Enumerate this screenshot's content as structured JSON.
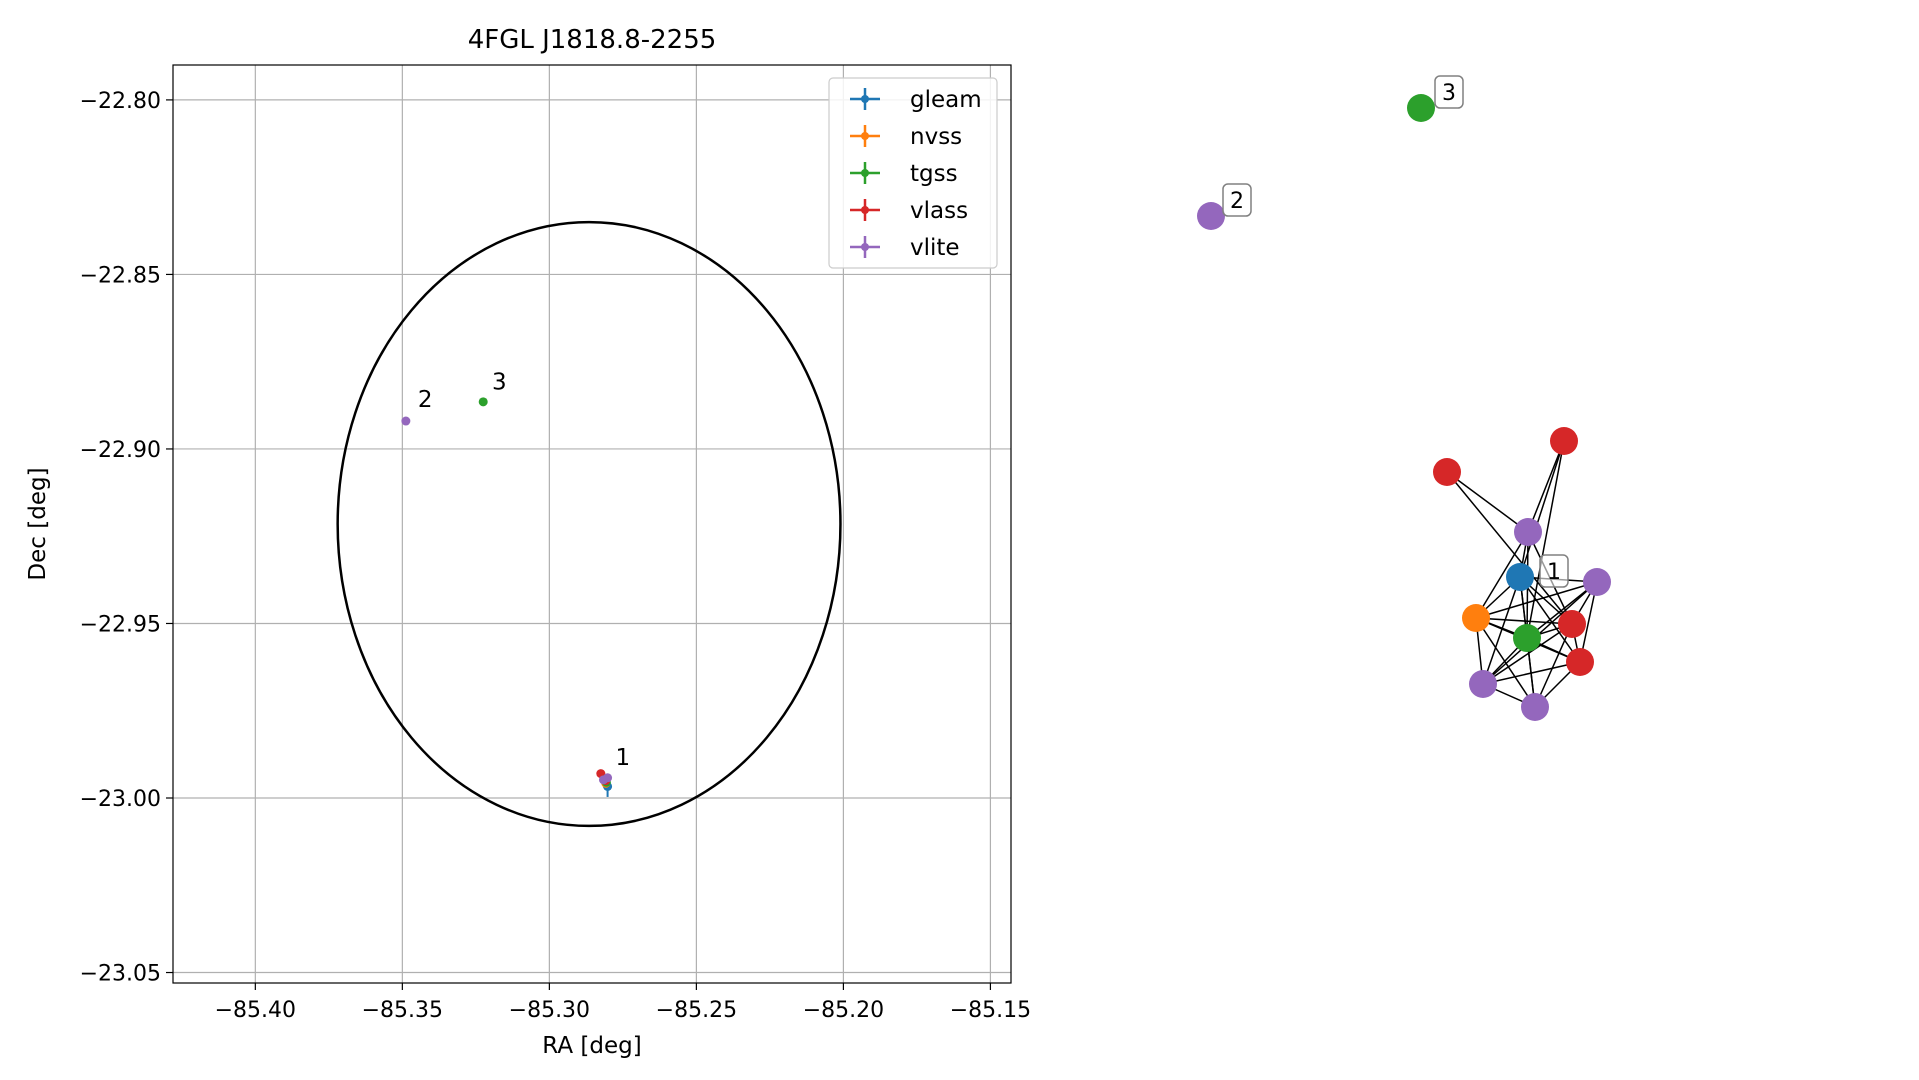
{
  "colors": {
    "gleam": "#1f77b4",
    "nvss": "#ff7f0e",
    "tgss": "#2ca02c",
    "vlass": "#d62728",
    "vlite": "#9467bd",
    "grid": "#b0b0b0",
    "axis": "#000000"
  },
  "chart_data": [
    {
      "type": "scatter",
      "title": "4FGL J1818.8-2255",
      "xlabel": "RA [deg]",
      "ylabel": "Dec [deg]",
      "xlim": [
        -85.428,
        -85.143
      ],
      "ylim": [
        -23.053,
        -22.79
      ],
      "x_ticks": [
        -85.4,
        -85.35,
        -85.3,
        -85.25,
        -85.2,
        -85.15
      ],
      "x_tick_labels": [
        "−85.40",
        "−85.35",
        "−85.30",
        "−85.25",
        "−85.20",
        "−85.15"
      ],
      "y_ticks": [
        -22.8,
        -22.85,
        -22.9,
        -22.95,
        -23.0,
        -23.05
      ],
      "y_tick_labels": [
        "−22.80",
        "−22.85",
        "−22.90",
        "−22.95",
        "−23.00",
        "−23.05"
      ],
      "grid": true,
      "legend_position": "top-right",
      "ellipse": {
        "center": [
          -85.2865,
          -22.9215
        ],
        "semi_axis_ra": 0.0855,
        "semi_axis_dec": 0.0865
      },
      "series": [
        {
          "name": "gleam",
          "points": [
            {
              "x": -85.2802,
              "y": -22.9967,
              "xerr": 0.0015,
              "yerr": 0.003
            }
          ]
        },
        {
          "name": "nvss",
          "points": [
            {
              "x": -85.2808,
              "y": -22.9958,
              "xerr": 0.0004,
              "yerr": 0.0004
            }
          ]
        },
        {
          "name": "tgss",
          "points": [
            {
              "x": -85.3225,
              "y": -22.8865,
              "xerr": 0.0003,
              "yerr": 0.0003
            },
            {
              "x": -85.2806,
              "y": -22.9955,
              "xerr": 0.0003,
              "yerr": 0.0003
            }
          ]
        },
        {
          "name": "vlass",
          "points": [
            {
              "x": -85.2825,
              "y": -22.993,
              "xerr": 0.0002,
              "yerr": 0.0002
            },
            {
              "x": -85.2812,
              "y": -22.9945,
              "xerr": 0.0002,
              "yerr": 0.0002
            },
            {
              "x": -85.2808,
              "y": -22.995,
              "xerr": 0.0002,
              "yerr": 0.0002
            }
          ]
        },
        {
          "name": "vlite",
          "points": [
            {
              "x": -85.3488,
              "y": -22.892,
              "xerr": 0.0005,
              "yerr": 0.0005
            },
            {
              "x": -85.2802,
              "y": -22.9942,
              "xerr": 0.0005,
              "yerr": 0.0005
            },
            {
              "x": -85.2816,
              "y": -22.9948,
              "xerr": 0.0005,
              "yerr": 0.0005
            }
          ]
        }
      ],
      "annotations": [
        {
          "text": "1",
          "x": -85.2775,
          "y": -22.9905
        },
        {
          "text": "2",
          "x": -85.3447,
          "y": -22.888
        },
        {
          "text": "3",
          "x": -85.3195,
          "y": -22.883
        }
      ]
    },
    {
      "type": "network",
      "nodes": [
        {
          "id": "n3",
          "survey": "tgss",
          "label": "3"
        },
        {
          "id": "n2",
          "survey": "vlite",
          "label": "2"
        },
        {
          "id": "r1",
          "survey": "vlass"
        },
        {
          "id": "r2",
          "survey": "vlass"
        },
        {
          "id": "v1",
          "survey": "vlite"
        },
        {
          "id": "b1",
          "survey": "gleam",
          "label": "1"
        },
        {
          "id": "v2",
          "survey": "vlite"
        },
        {
          "id": "o1",
          "survey": "nvss"
        },
        {
          "id": "r3",
          "survey": "vlass"
        },
        {
          "id": "g1",
          "survey": "tgss"
        },
        {
          "id": "r4",
          "survey": "vlass"
        },
        {
          "id": "v3",
          "survey": "vlite"
        },
        {
          "id": "v4",
          "survey": "vlite"
        }
      ],
      "edges": [
        [
          "r1",
          "v1"
        ],
        [
          "r1",
          "r3"
        ],
        [
          "r2",
          "v1"
        ],
        [
          "r2",
          "b1"
        ],
        [
          "r2",
          "g1"
        ],
        [
          "v1",
          "b1"
        ],
        [
          "v1",
          "o1"
        ],
        [
          "v1",
          "r3"
        ],
        [
          "v1",
          "g1"
        ],
        [
          "b1",
          "v2"
        ],
        [
          "b1",
          "o1"
        ],
        [
          "b1",
          "r3"
        ],
        [
          "b1",
          "g1"
        ],
        [
          "b1",
          "r4"
        ],
        [
          "b1",
          "v3"
        ],
        [
          "b1",
          "v4"
        ],
        [
          "v2",
          "o1"
        ],
        [
          "v2",
          "g1"
        ],
        [
          "v2",
          "r3"
        ],
        [
          "v2",
          "r4"
        ],
        [
          "v2",
          "v3"
        ],
        [
          "o1",
          "g1"
        ],
        [
          "o1",
          "r3"
        ],
        [
          "o1",
          "v3"
        ],
        [
          "o1",
          "v4"
        ],
        [
          "o1",
          "r4"
        ],
        [
          "g1",
          "r3"
        ],
        [
          "g1",
          "r4"
        ],
        [
          "g1",
          "v3"
        ],
        [
          "g1",
          "v4"
        ],
        [
          "r3",
          "r4"
        ],
        [
          "r3",
          "v3"
        ],
        [
          "r3",
          "v4"
        ],
        [
          "r4",
          "v3"
        ],
        [
          "r4",
          "v4"
        ],
        [
          "v3",
          "v4"
        ]
      ]
    }
  ]
}
